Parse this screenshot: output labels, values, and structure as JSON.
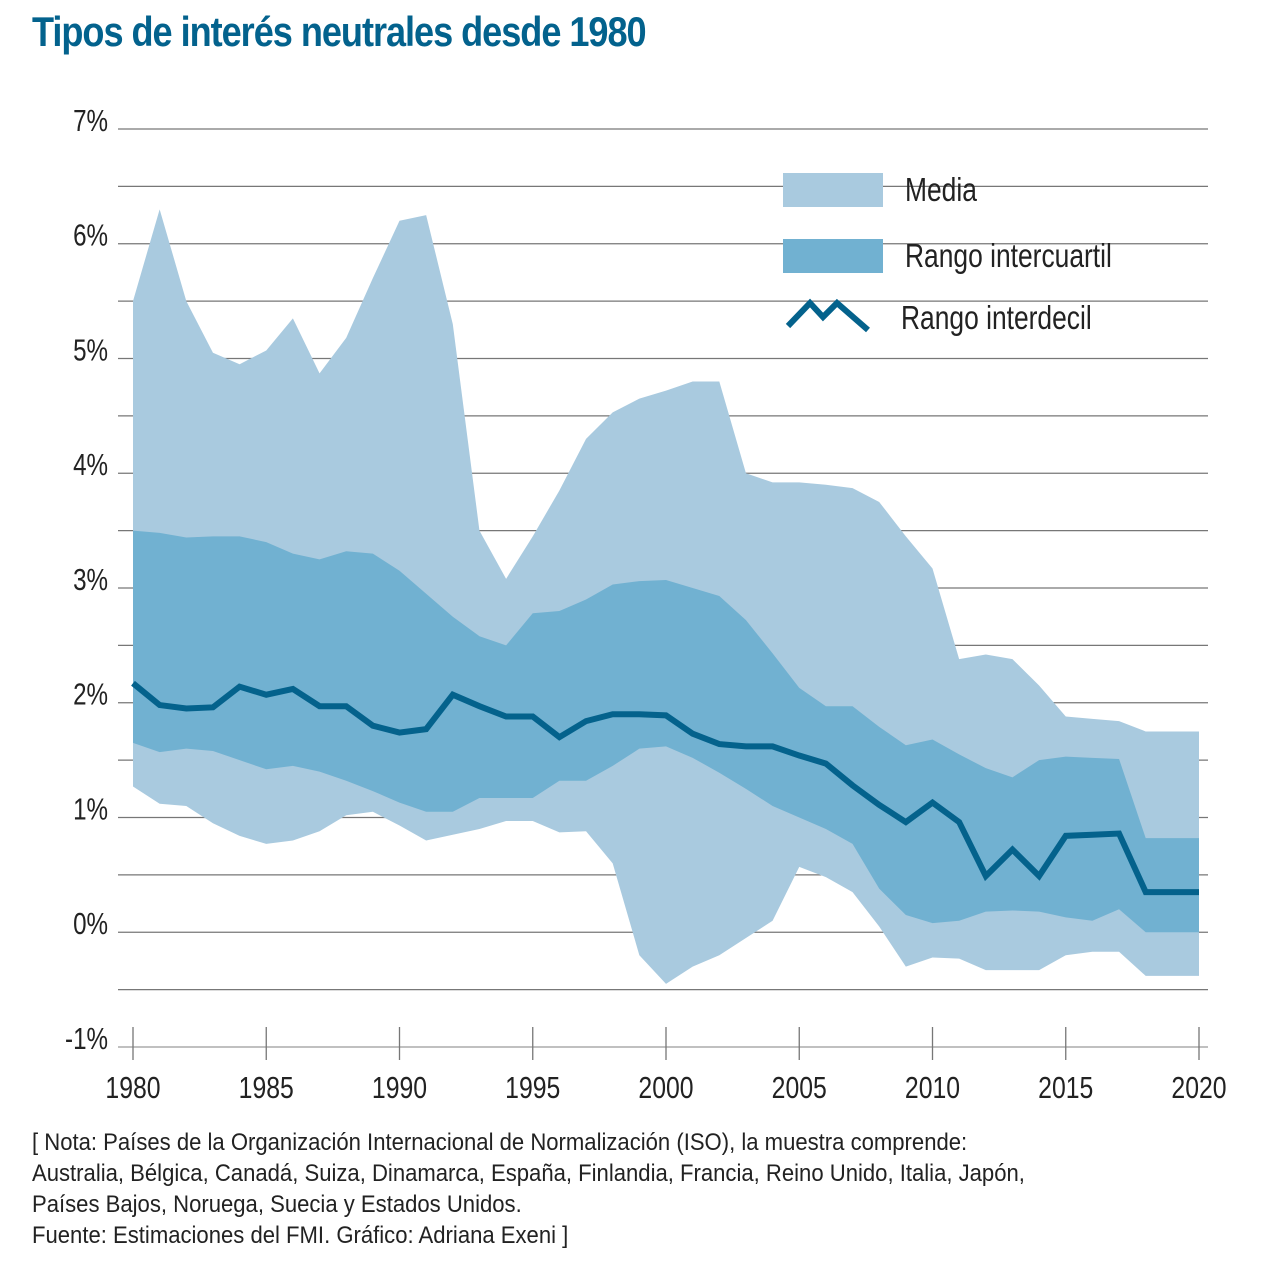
{
  "title": "Tipos de interés neutrales desde 1980",
  "chart_data": {
    "type": "area",
    "title": "Tipos de interés neutrales desde 1980",
    "xlabel": "",
    "ylabel": "",
    "x": [
      1980,
      1981,
      1982,
      1983,
      1984,
      1985,
      1986,
      1987,
      1988,
      1989,
      1990,
      1991,
      1992,
      1993,
      1994,
      1995,
      1996,
      1997,
      1998,
      1999,
      2000,
      2001,
      2002,
      2003,
      2004,
      2005,
      2006,
      2007,
      2008,
      2009,
      2010,
      2011,
      2012,
      2013,
      2014,
      2015,
      2016,
      2017,
      2018,
      2019,
      2020
    ],
    "xlim": [
      1980,
      2020
    ],
    "ylim": [
      -1,
      7
    ],
    "x_ticks": [
      1980,
      1985,
      1990,
      1995,
      2000,
      2005,
      2010,
      2015,
      2020
    ],
    "x_tick_labels": [
      "1980",
      "1985",
      "1990",
      "1995",
      "2000",
      "2005",
      "2010",
      "2015",
      "2020"
    ],
    "y_ticks": [
      7,
      6,
      5,
      4,
      3,
      2,
      1,
      0,
      -1
    ],
    "y_tick_labels": [
      "7%",
      "6%",
      "5%",
      "4%",
      "3%",
      "2%",
      "1%",
      "0%",
      "-1%"
    ],
    "grid": true,
    "grid_step": 0.5,
    "legend_position": "top-right",
    "series": [
      {
        "name": "Media",
        "kind": "band",
        "color": "#a9cadf",
        "upper": [
          5.5,
          6.3,
          5.5,
          5.05,
          4.95,
          5.07,
          5.35,
          4.87,
          5.18,
          5.7,
          6.2,
          6.25,
          5.3,
          3.5,
          3.08,
          3.45,
          3.85,
          4.3,
          4.53,
          4.65,
          4.72,
          4.8,
          4.8,
          4.0,
          3.92,
          3.92,
          3.9,
          3.87,
          3.75,
          3.45,
          3.17,
          2.38,
          2.42,
          2.38,
          2.15,
          1.88,
          1.86,
          1.84,
          1.75,
          1.75,
          1.75
        ],
        "lower": [
          1.27,
          1.12,
          1.1,
          0.95,
          0.84,
          0.77,
          0.8,
          0.88,
          1.02,
          1.05,
          0.93,
          0.8,
          0.85,
          0.9,
          0.97,
          0.97,
          0.87,
          0.88,
          0.6,
          -0.2,
          -0.45,
          -0.3,
          -0.2,
          -0.05,
          0.1,
          0.57,
          0.48,
          0.35,
          0.05,
          -0.3,
          -0.22,
          -0.23,
          -0.33,
          -0.33,
          -0.33,
          -0.2,
          -0.17,
          -0.17,
          -0.38,
          -0.38,
          -0.38
        ]
      },
      {
        "name": "Rango intercuartil",
        "kind": "band",
        "color": "#71b1d1",
        "upper": [
          3.5,
          3.48,
          3.44,
          3.45,
          3.45,
          3.4,
          3.3,
          3.25,
          3.32,
          3.3,
          3.15,
          2.95,
          2.75,
          2.58,
          2.5,
          2.78,
          2.8,
          2.9,
          3.03,
          3.06,
          3.07,
          3.0,
          2.93,
          2.72,
          2.43,
          2.13,
          1.97,
          1.97,
          1.79,
          1.63,
          1.68,
          1.55,
          1.43,
          1.35,
          1.5,
          1.53,
          1.52,
          1.51,
          0.82,
          0.82,
          0.82
        ],
        "lower": [
          1.65,
          1.57,
          1.6,
          1.58,
          1.5,
          1.42,
          1.45,
          1.4,
          1.32,
          1.23,
          1.13,
          1.05,
          1.05,
          1.17,
          1.17,
          1.17,
          1.32,
          1.32,
          1.45,
          1.6,
          1.62,
          1.52,
          1.39,
          1.25,
          1.1,
          1.0,
          0.9,
          0.77,
          0.38,
          0.15,
          0.08,
          0.1,
          0.18,
          0.19,
          0.18,
          0.13,
          0.1,
          0.2,
          0.0,
          0.0,
          0.0
        ]
      },
      {
        "name": "Rango interdecil",
        "kind": "line",
        "color": "#04628c",
        "values": [
          2.17,
          1.98,
          1.95,
          1.96,
          2.14,
          2.07,
          2.12,
          1.97,
          1.97,
          1.8,
          1.74,
          1.77,
          2.07,
          1.97,
          1.88,
          1.88,
          1.7,
          1.84,
          1.9,
          1.9,
          1.89,
          1.73,
          1.64,
          1.62,
          1.62,
          1.54,
          1.47,
          1.28,
          1.11,
          0.96,
          1.13,
          0.96,
          0.49,
          0.72,
          0.49,
          0.84,
          0.85,
          0.86,
          0.35,
          0.35,
          0.35
        ]
      }
    ],
    "legend": [
      {
        "label": "Media",
        "swatch": "area",
        "color": "#a9cadf"
      },
      {
        "label": "Rango intercuartil",
        "swatch": "area",
        "color": "#71b1d1"
      },
      {
        "label": "Rango interdecil",
        "swatch": "line",
        "color": "#04628c"
      }
    ]
  },
  "footer": {
    "lines": [
      "[ Nota: Países de la Organización Internacional de Normalización (ISO), la muestra comprende:",
      "Australia, Bélgica, Canadá, Suiza, Dinamarca, España, Finlandia, Francia, Reino Unido, Italia, Japón,",
      "Países Bajos, Noruega, Suecia y Estados Unidos.",
      "Fuente: Estimaciones del FMI.  Gráfico: Adriana Exeni ]"
    ]
  }
}
